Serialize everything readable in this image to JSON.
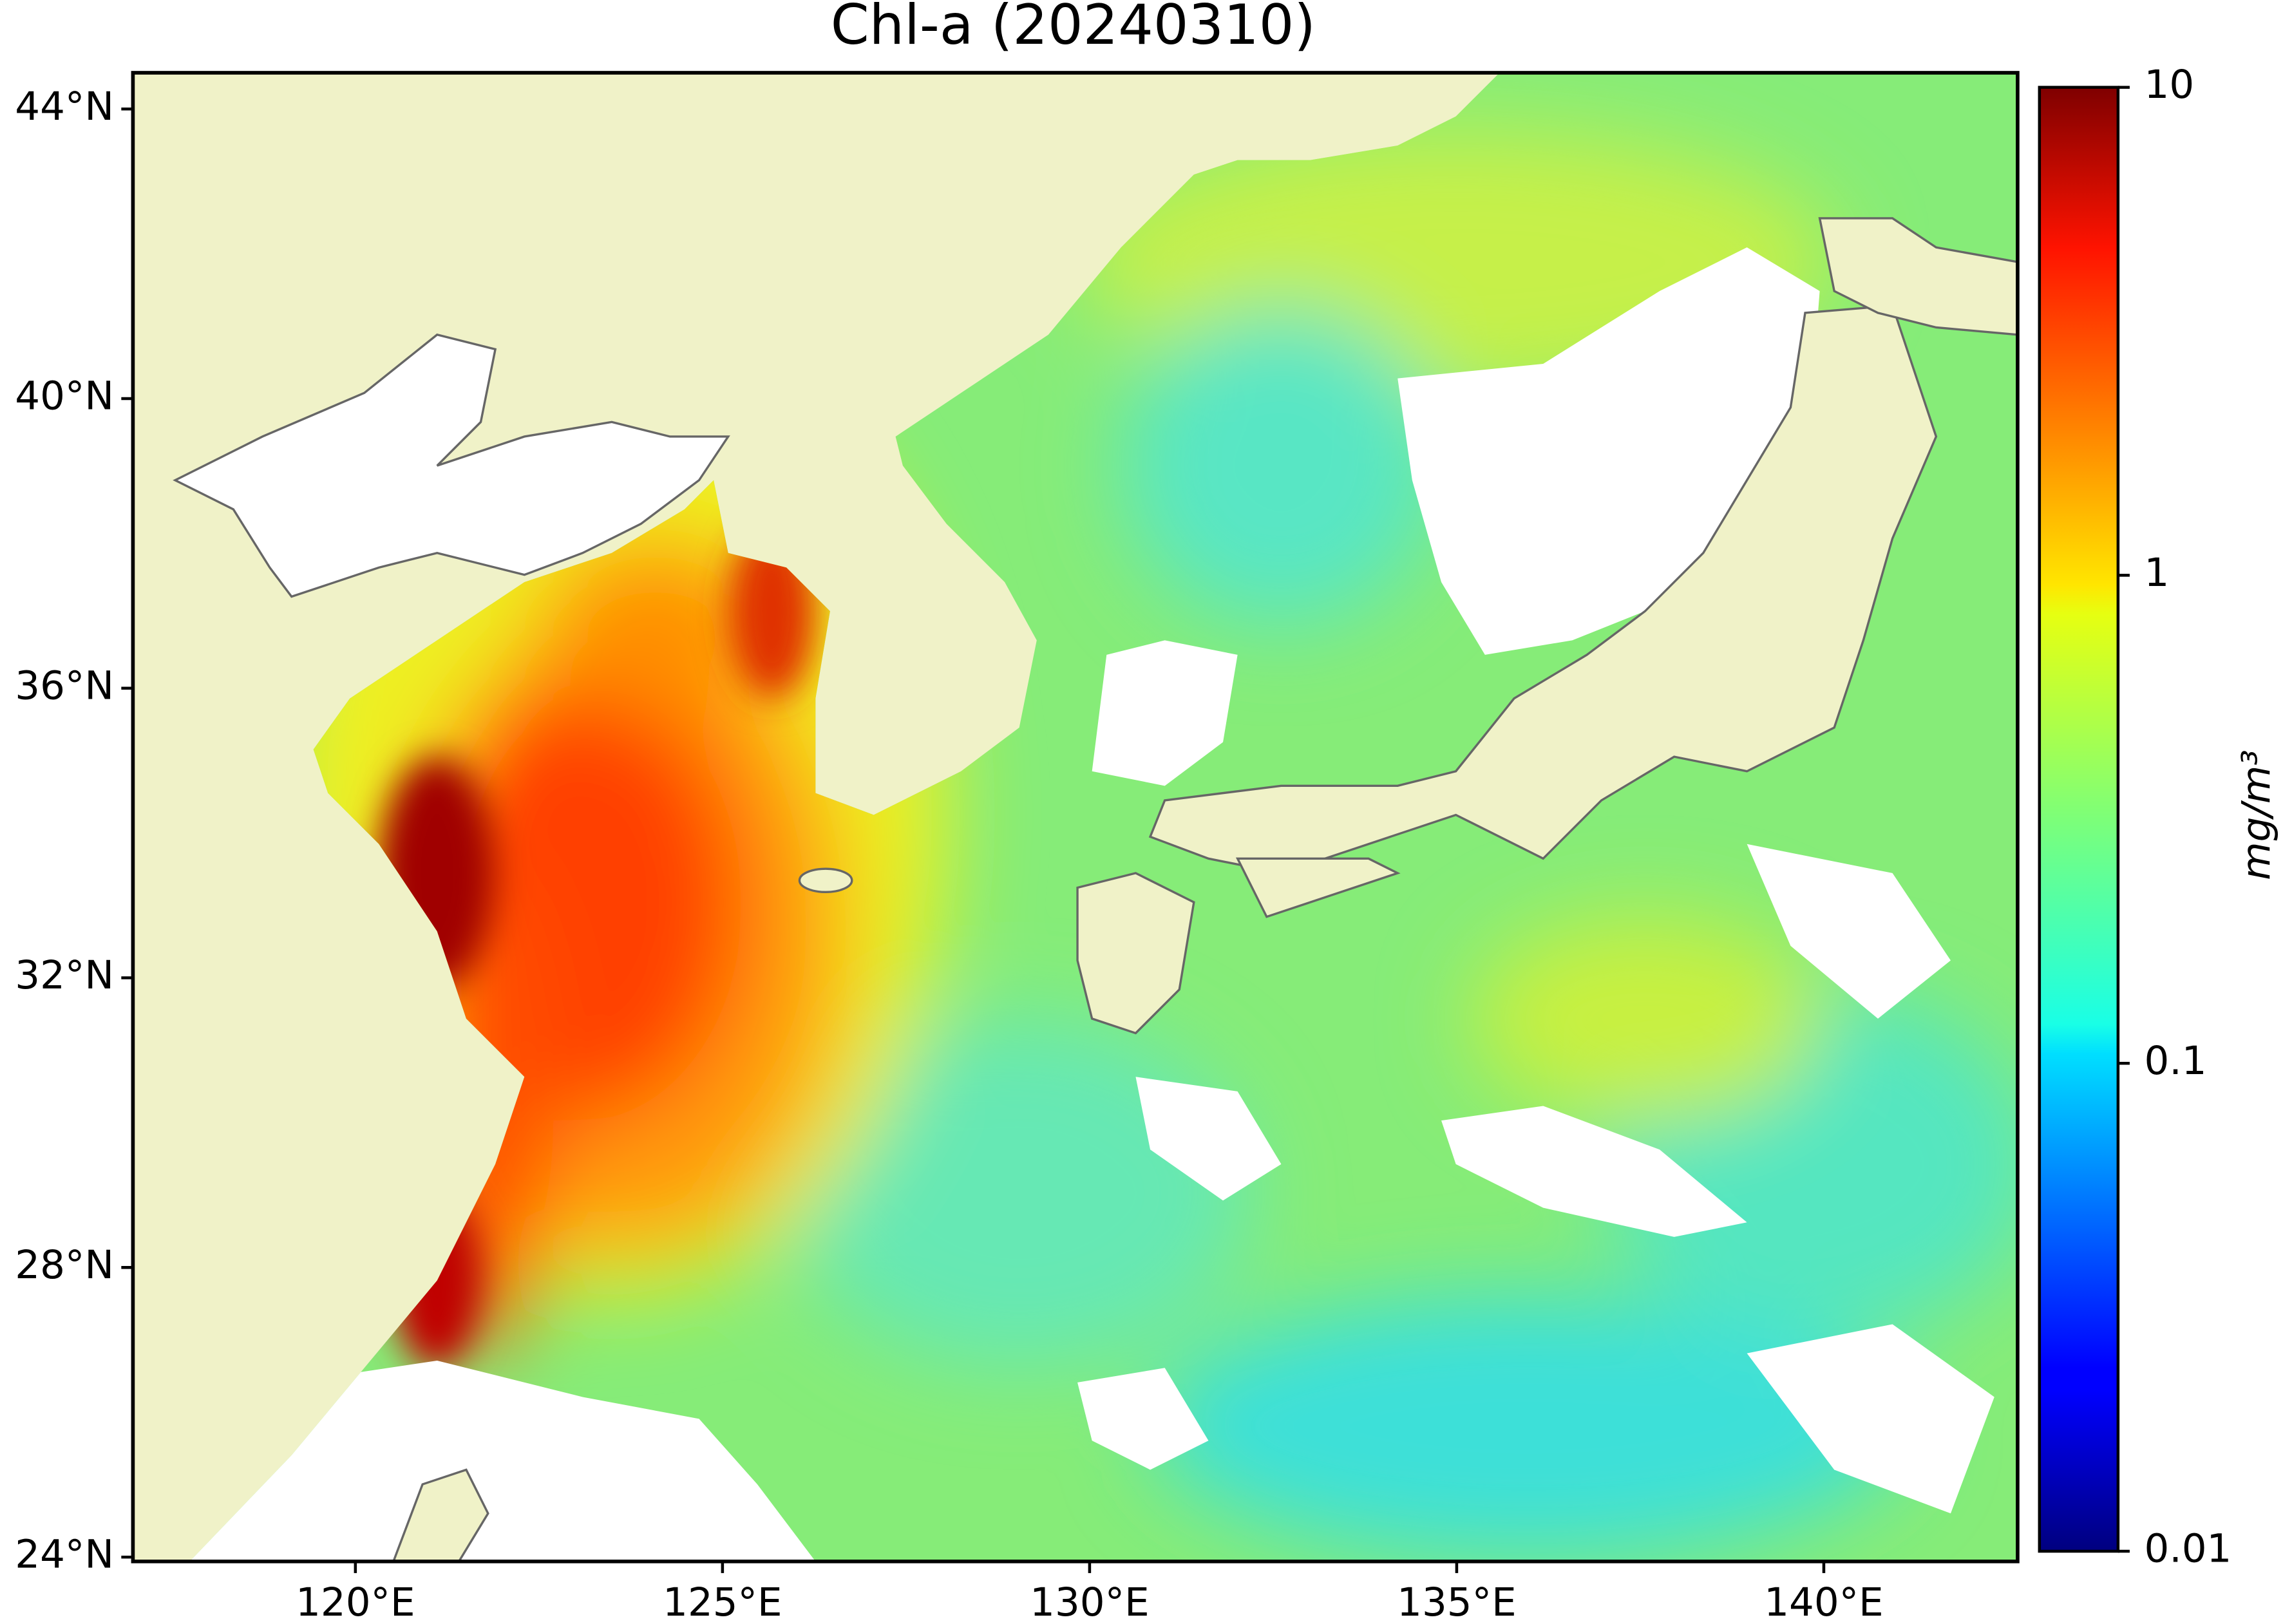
{
  "title": "Chl-a (20240310)",
  "map": {
    "xlim": [
      116.97,
      142.64
    ],
    "ylim": [
      23.94,
      44.5
    ],
    "xticks": [
      {
        "value": 120,
        "label": "120°E"
      },
      {
        "value": 125,
        "label": "125°E"
      },
      {
        "value": 130,
        "label": "130°E"
      },
      {
        "value": 135,
        "label": "135°E"
      },
      {
        "value": 140,
        "label": "140°E"
      }
    ],
    "yticks": [
      {
        "value": 24,
        "label": "24°N"
      },
      {
        "value": 28,
        "label": "28°N"
      },
      {
        "value": 32,
        "label": "32°N"
      },
      {
        "value": 36,
        "label": "36°N"
      },
      {
        "value": 40,
        "label": "40°N"
      },
      {
        "value": 44,
        "label": "44°N"
      }
    ]
  },
  "colorbar": {
    "label": "mg/m³",
    "scale": "log",
    "colormap": "jet",
    "lim": [
      0.01,
      10
    ],
    "ticks": [
      0.01,
      0.1,
      1,
      10
    ]
  }
}
